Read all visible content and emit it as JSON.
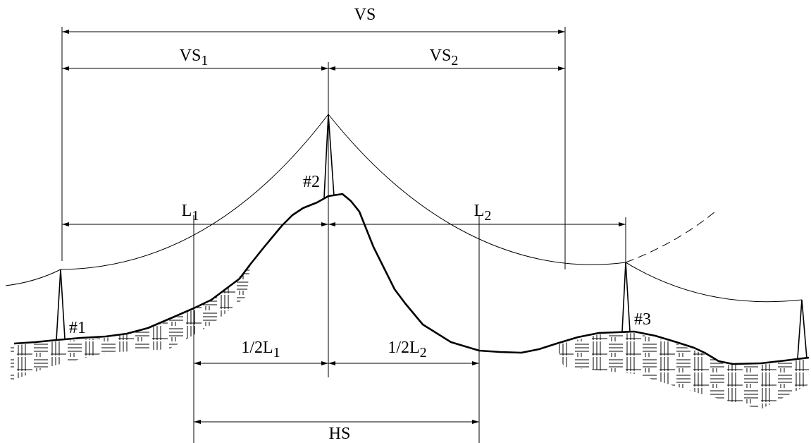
{
  "dimensions": {
    "vs": "VS",
    "vs1": {
      "text": "VS",
      "sub": "1"
    },
    "vs2": {
      "text": "VS",
      "sub": "2"
    },
    "l1": {
      "text": "L",
      "sub": "1"
    },
    "l2": {
      "text": "L",
      "sub": "2"
    },
    "half_l1": {
      "text": "1/2L",
      "sub": "1"
    },
    "half_l2": {
      "text": "1/2L",
      "sub": "2"
    },
    "hs": "HS"
  },
  "towers": [
    "#1",
    "#2",
    "#3"
  ]
}
